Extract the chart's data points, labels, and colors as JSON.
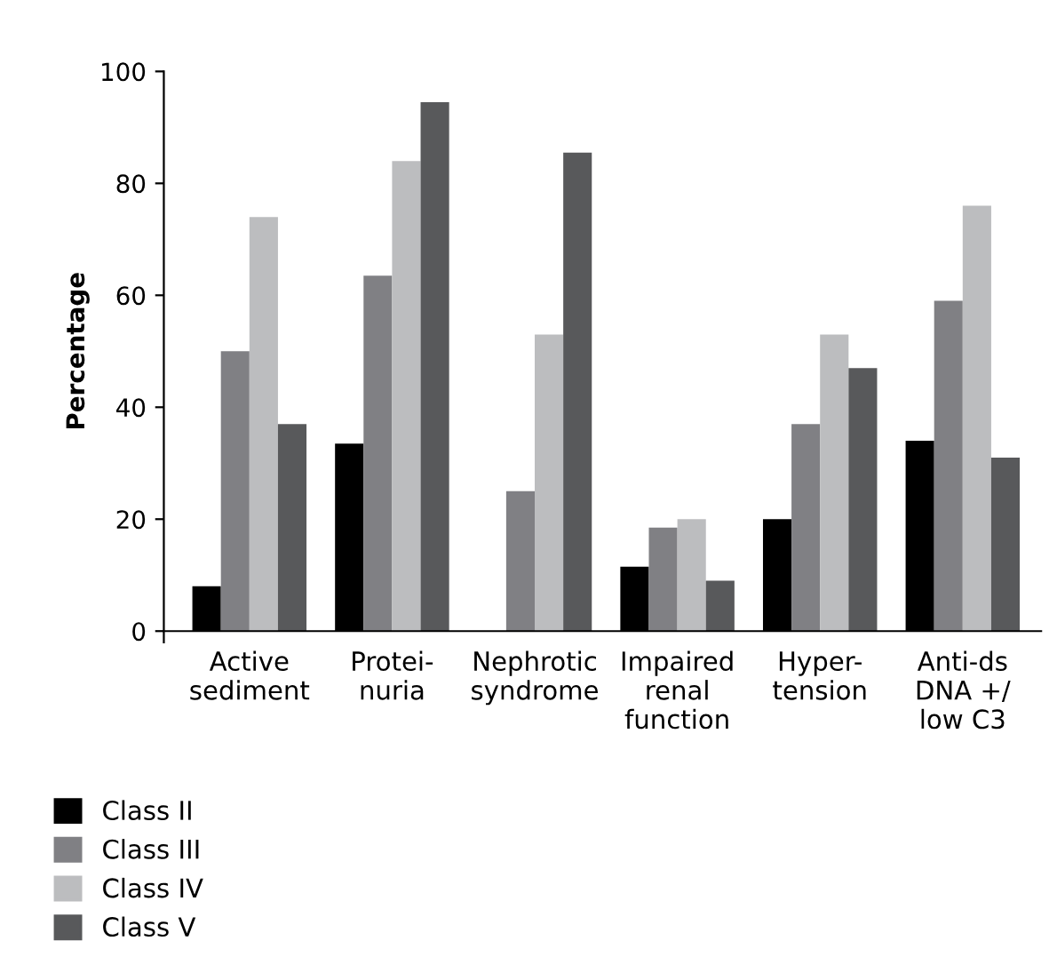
{
  "chart_data": {
    "type": "bar",
    "ylabel": "Percentage",
    "categories": [
      "Active\nsediment",
      "Protei-\nnuria",
      "Nephrotic\nsyndrome",
      "Impaired\nrenal\nfunction",
      "Hyper-\ntension",
      "Anti-ds\nDNA +/\nlow C3"
    ],
    "series": [
      {
        "name": "Class II",
        "color": "#000000",
        "values": [
          8,
          33.5,
          0,
          11.5,
          20,
          34
        ]
      },
      {
        "name": "Class III",
        "color": "#808084",
        "values": [
          50,
          63.5,
          25,
          18.5,
          37,
          59
        ]
      },
      {
        "name": "Class IV",
        "color": "#bcbdbf",
        "values": [
          74,
          84,
          53,
          20,
          53,
          76
        ]
      },
      {
        "name": "Class V",
        "color": "#58595b",
        "values": [
          37,
          94.5,
          85.5,
          9,
          47,
          31
        ]
      }
    ],
    "ylim": [
      0,
      100
    ],
    "yticks": [
      0,
      20,
      40,
      60,
      80,
      100
    ],
    "grid": false,
    "legend": "bottom left"
  }
}
